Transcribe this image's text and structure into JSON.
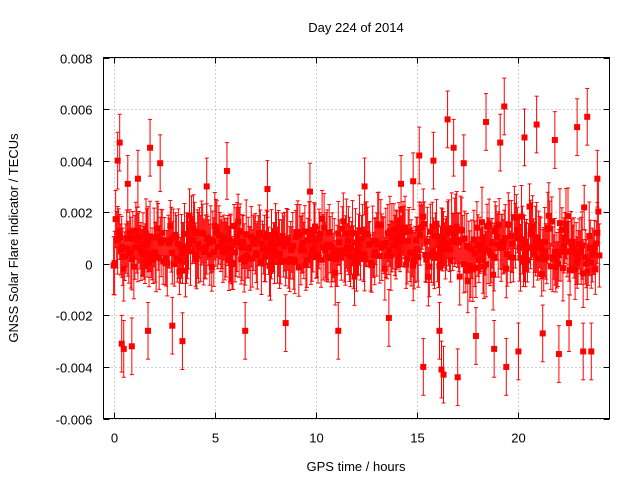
{
  "chart_data": {
    "type": "scatter",
    "title": "Day 224 of 2014",
    "xlabel": "GPS time / hours",
    "ylabel": "GNSS Solar Flare indicator / TECUs",
    "xlim": [
      -0.5,
      24.5
    ],
    "ylim": [
      -0.006,
      0.008
    ],
    "x_ticks": [
      0,
      5,
      10,
      15,
      20
    ],
    "x_tick_labels": [
      "0",
      "5",
      "10",
      "15",
      "20"
    ],
    "y_ticks": [
      -0.006,
      -0.004,
      -0.002,
      0,
      0.002,
      0.004,
      0.006,
      0.008
    ],
    "y_tick_labels": [
      "-0.006",
      "-0.004",
      "-0.002",
      "0",
      "0.002",
      "0.004",
      "0.006",
      "0.008"
    ],
    "grid": true,
    "marker": "square",
    "error_bars": true,
    "series_color": "#ff0000",
    "series": [
      {
        "name": "solar flare indicator",
        "sampling_interval_hours": 0.05,
        "typical_error": 0.0011,
        "points": [
          {
            "x": 0.2,
            "y": 0.004
          },
          {
            "x": 0.3,
            "y": 0.0047
          },
          {
            "x": 0.4,
            "y": -0.0031
          },
          {
            "x": 0.5,
            "y": -0.0033
          },
          {
            "x": 0.7,
            "y": 0.0031
          },
          {
            "x": 0.9,
            "y": -0.0032
          },
          {
            "x": 1.2,
            "y": 0.0033
          },
          {
            "x": 1.7,
            "y": -0.0026
          },
          {
            "x": 1.8,
            "y": 0.0045
          },
          {
            "x": 2.3,
            "y": 0.0039
          },
          {
            "x": 2.9,
            "y": -0.0024
          },
          {
            "x": 3.4,
            "y": -0.003
          },
          {
            "x": 4.6,
            "y": 0.003
          },
          {
            "x": 5.6,
            "y": 0.0036
          },
          {
            "x": 6.5,
            "y": -0.0026
          },
          {
            "x": 7.6,
            "y": 0.0029
          },
          {
            "x": 8.5,
            "y": -0.0023
          },
          {
            "x": 9.7,
            "y": 0.0028
          },
          {
            "x": 11.1,
            "y": -0.0026
          },
          {
            "x": 12.4,
            "y": 0.003
          },
          {
            "x": 13.6,
            "y": -0.0021
          },
          {
            "x": 14.2,
            "y": 0.0031
          },
          {
            "x": 14.8,
            "y": 0.0032
          },
          {
            "x": 15.1,
            "y": 0.0042
          },
          {
            "x": 15.3,
            "y": -0.004
          },
          {
            "x": 15.8,
            "y": 0.004
          },
          {
            "x": 16.1,
            "y": -0.0026
          },
          {
            "x": 16.2,
            "y": -0.0041
          },
          {
            "x": 16.3,
            "y": -0.0043
          },
          {
            "x": 16.5,
            "y": 0.0056
          },
          {
            "x": 16.8,
            "y": 0.0045
          },
          {
            "x": 17.0,
            "y": -0.0044
          },
          {
            "x": 17.3,
            "y": 0.0039
          },
          {
            "x": 17.9,
            "y": -0.0028
          },
          {
            "x": 18.4,
            "y": 0.0055
          },
          {
            "x": 18.8,
            "y": -0.0033
          },
          {
            "x": 19.1,
            "y": 0.0047
          },
          {
            "x": 19.3,
            "y": 0.0061
          },
          {
            "x": 19.4,
            "y": -0.004
          },
          {
            "x": 20.0,
            "y": -0.0034
          },
          {
            "x": 20.3,
            "y": 0.0049
          },
          {
            "x": 20.9,
            "y": 0.0054
          },
          {
            "x": 21.2,
            "y": -0.0027
          },
          {
            "x": 21.8,
            "y": 0.0048
          },
          {
            "x": 22.0,
            "y": -0.0035
          },
          {
            "x": 22.5,
            "y": -0.0023
          },
          {
            "x": 22.9,
            "y": 0.0053
          },
          {
            "x": 23.2,
            "y": -0.0034
          },
          {
            "x": 23.4,
            "y": 0.0057
          },
          {
            "x": 23.6,
            "y": -0.0034
          },
          {
            "x": 23.9,
            "y": 0.0033
          }
        ]
      }
    ]
  }
}
